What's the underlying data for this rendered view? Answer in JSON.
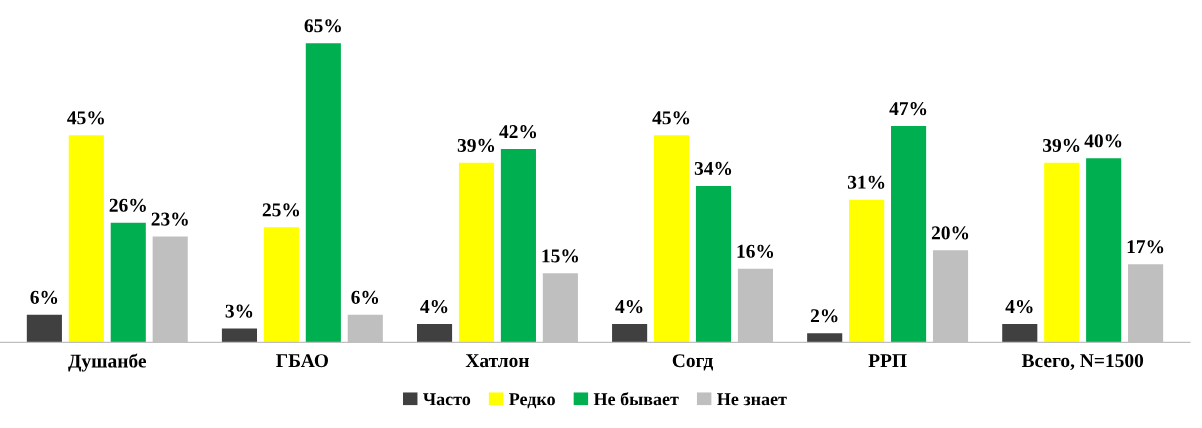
{
  "chart_data": {
    "type": "bar",
    "categories": [
      "Душанбе",
      "ГБАО",
      "Хатлон",
      "Согд",
      "РРП",
      "Всего, N=1500"
    ],
    "series": [
      {
        "name": "Часто",
        "color": "#404040",
        "values": [
          6,
          3,
          4,
          4,
          2,
          4
        ],
        "value_labels": [
          "6%",
          "3%",
          "4%",
          "4%",
          "2%",
          "4%"
        ]
      },
      {
        "name": "Редко",
        "color": "#ffff00",
        "values": [
          45,
          25,
          39,
          45,
          31,
          39
        ],
        "value_labels": [
          "45%",
          "25%",
          "39%",
          "45%",
          "31%",
          "39%"
        ]
      },
      {
        "name": "Не бывает",
        "color": "#00b050",
        "values": [
          26,
          65,
          42,
          34,
          47,
          40
        ],
        "value_labels": [
          "26%",
          "65%",
          "42%",
          "34%",
          "47%",
          "40%"
        ]
      },
      {
        "name": "Не знает",
        "color": "#bfbfbf",
        "values": [
          23,
          6,
          15,
          16,
          20,
          17
        ],
        "value_labels": [
          "23%",
          "6%",
          "15%",
          "16%",
          "20%",
          "17%"
        ]
      }
    ],
    "legend": "bottom",
    "grid": false
  }
}
